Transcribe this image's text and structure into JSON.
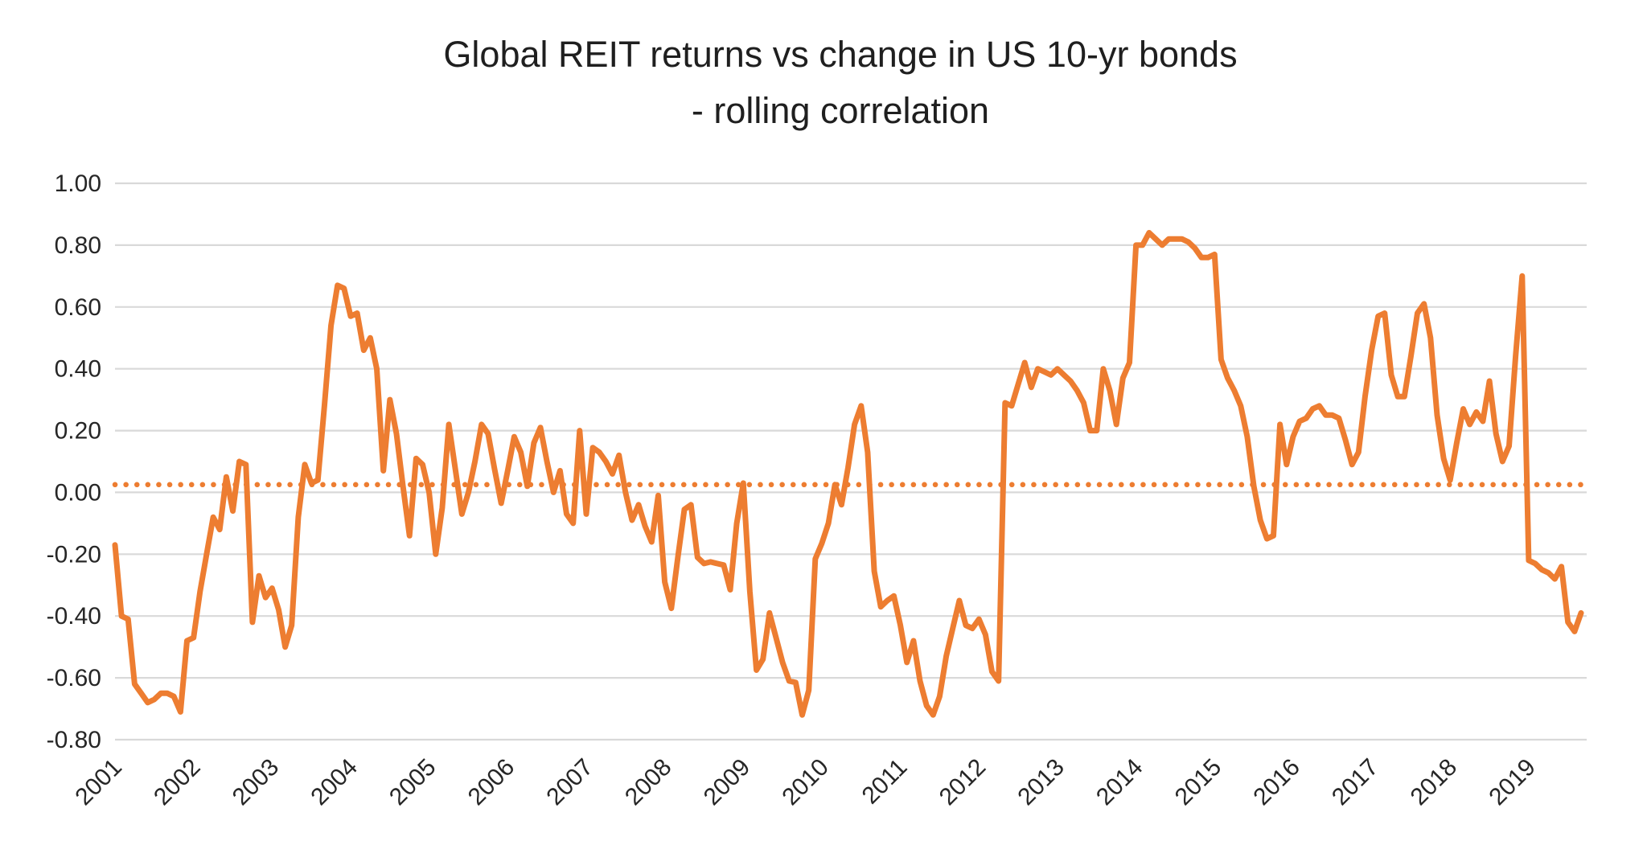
{
  "title": {
    "line1": "Global REIT returns vs change in US 10-yr bonds",
    "line2": "- rolling correlation"
  },
  "colors": {
    "series_orange": "#ED7D31",
    "gridline_gray": "#D9D9D9",
    "text_dark": "#262626",
    "background": "#FFFFFF"
  },
  "chart_data": {
    "type": "line",
    "title": "Global REIT returns vs change in US 10-yr bonds - rolling correlation",
    "xlabel": "",
    "ylabel": "",
    "ylim": [
      -0.8,
      1.0
    ],
    "grid": "horizontal",
    "legend": "none",
    "y_tick_labels": [
      "1.00",
      "0.80",
      "0.60",
      "0.40",
      "0.20",
      "0.00",
      "-0.20",
      "-0.40",
      "-0.60",
      "-0.80"
    ],
    "y_ticks": [
      1.0,
      0.8,
      0.6,
      0.4,
      0.2,
      0.0,
      -0.2,
      -0.4,
      -0.6,
      -0.8
    ],
    "x_tick_labels": [
      "2001",
      "2002",
      "2003",
      "2004",
      "2005",
      "2006",
      "2007",
      "2008",
      "2009",
      "2010",
      "2011",
      "2012",
      "2013",
      "2014",
      "2015",
      "2016",
      "2017",
      "2018",
      "2019"
    ],
    "x_start": "2001-01",
    "frequency": "monthly",
    "reference_line": {
      "value": 0.025,
      "style": "dotted",
      "color": "#ED7D31"
    },
    "series": [
      {
        "name": "rolling correlation",
        "color": "#ED7D31",
        "values": [
          -0.17,
          -0.4,
          -0.41,
          -0.62,
          -0.65,
          -0.68,
          -0.67,
          -0.65,
          -0.65,
          -0.66,
          -0.71,
          -0.48,
          -0.47,
          -0.32,
          -0.2,
          -0.08,
          -0.12,
          0.05,
          -0.06,
          0.1,
          0.09,
          -0.42,
          -0.27,
          -0.34,
          -0.31,
          -0.38,
          -0.5,
          -0.43,
          -0.08,
          0.09,
          0.03,
          0.04,
          0.28,
          0.54,
          0.67,
          0.66,
          0.57,
          0.58,
          0.46,
          0.5,
          0.4,
          0.07,
          0.3,
          0.19,
          0.02,
          -0.14,
          0.11,
          0.09,
          0.0,
          -0.2,
          -0.05,
          0.22,
          0.075,
          -0.07,
          0.0,
          0.1,
          0.22,
          0.19,
          0.075,
          -0.035,
          0.07,
          0.18,
          0.13,
          0.02,
          0.16,
          0.21,
          0.1,
          0.0,
          0.07,
          -0.07,
          -0.1,
          0.2,
          -0.07,
          0.145,
          0.13,
          0.1,
          0.06,
          0.12,
          0.0,
          -0.09,
          -0.04,
          -0.11,
          -0.16,
          -0.01,
          -0.29,
          -0.375,
          -0.21,
          -0.055,
          -0.04,
          -0.21,
          -0.23,
          -0.225,
          -0.23,
          -0.235,
          -0.315,
          -0.1,
          0.03,
          -0.32,
          -0.575,
          -0.54,
          -0.39,
          -0.47,
          -0.55,
          -0.61,
          -0.615,
          -0.72,
          -0.64,
          -0.215,
          -0.165,
          -0.1,
          0.025,
          -0.04,
          0.08,
          0.22,
          0.28,
          0.13,
          -0.255,
          -0.37,
          -0.35,
          -0.335,
          -0.43,
          -0.55,
          -0.48,
          -0.61,
          -0.69,
          -0.72,
          -0.66,
          -0.53,
          -0.44,
          -0.35,
          -0.43,
          -0.44,
          -0.41,
          -0.46,
          -0.58,
          -0.61,
          0.29,
          0.28,
          0.35,
          0.42,
          0.34,
          0.4,
          0.39,
          0.38,
          0.4,
          0.38,
          0.36,
          0.33,
          0.29,
          0.2,
          0.2,
          0.4,
          0.33,
          0.22,
          0.37,
          0.42,
          0.8,
          0.8,
          0.84,
          0.82,
          0.8,
          0.82,
          0.82,
          0.82,
          0.81,
          0.79,
          0.76,
          0.76,
          0.77,
          0.43,
          0.37,
          0.33,
          0.28,
          0.18,
          0.02,
          -0.09,
          -0.15,
          -0.14,
          0.22,
          0.09,
          0.18,
          0.23,
          0.24,
          0.27,
          0.28,
          0.25,
          0.25,
          0.24,
          0.17,
          0.09,
          0.13,
          0.31,
          0.46,
          0.57,
          0.58,
          0.38,
          0.31,
          0.31,
          0.44,
          0.58,
          0.61,
          0.5,
          0.25,
          0.11,
          0.04,
          0.16,
          0.27,
          0.22,
          0.26,
          0.23,
          0.36,
          0.19,
          0.1,
          0.15,
          0.44,
          0.7,
          -0.22,
          -0.23,
          -0.25,
          -0.26,
          -0.28,
          -0.24,
          -0.42,
          -0.45,
          -0.39
        ]
      }
    ]
  }
}
